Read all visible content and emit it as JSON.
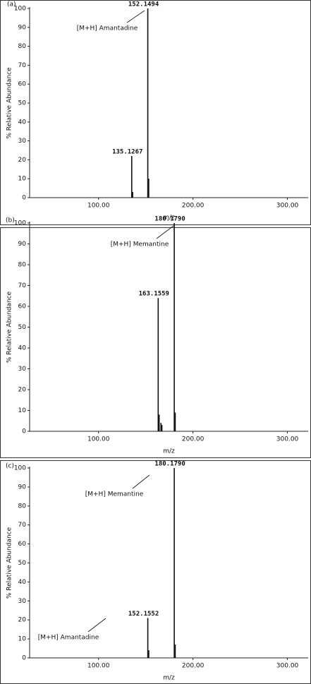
{
  "chart_data": [
    {
      "type": "spectrum",
      "panel_label": "(a)",
      "xlabel": "m/z",
      "ylabel": "% Relative Abundance",
      "x": [
        135.1267,
        136.1,
        152.1494,
        153.15
      ],
      "values": [
        22,
        3,
        100,
        10
      ],
      "x_labels": [
        "135.1267",
        null,
        "152.1494",
        null
      ],
      "annotations": [
        "[M+H] Amantadine"
      ],
      "color": "#111111",
      "xlim": [
        27,
        322
      ],
      "ylim": [
        0,
        100
      ],
      "xticks": [
        {
          "value": 100,
          "label": "100.00"
        },
        {
          "value": 200,
          "label": "200.00"
        },
        {
          "value": 300,
          "label": "300.00"
        }
      ],
      "yticks": [
        0,
        10,
        20,
        30,
        40,
        50,
        60,
        70,
        80,
        90,
        100
      ]
    },
    {
      "type": "spectrum",
      "panel_label": "(b)",
      "xlabel": "m/z",
      "ylabel": "% Relative Abundance",
      "x": [
        163.1559,
        164.16,
        166.1,
        167.1,
        180.179,
        181.18
      ],
      "values": [
        64,
        8,
        4,
        3,
        100,
        9
      ],
      "x_labels": [
        "163.1559",
        null,
        null,
        null,
        "180.1790",
        null
      ],
      "annotations": [
        "[M+H] Memantine"
      ],
      "color": "#111111",
      "xlim": [
        27,
        322
      ],
      "ylim": [
        0,
        100
      ],
      "xticks": [
        {
          "value": 100,
          "label": "100.00"
        },
        {
          "value": 200,
          "label": "200.00"
        },
        {
          "value": 300,
          "label": "300.00"
        }
      ],
      "yticks": [
        0,
        10,
        20,
        30,
        40,
        50,
        60,
        70,
        80,
        90,
        100
      ]
    },
    {
      "type": "spectrum",
      "panel_label": "(c)",
      "xlabel": "m/z",
      "ylabel": "% Relative Abundance",
      "x": [
        152.1552,
        153.16,
        180.179,
        181.18
      ],
      "values": [
        21,
        4,
        100,
        7
      ],
      "x_labels": [
        "152.1552",
        null,
        "180.1790",
        null
      ],
      "annotations": [
        "[M+H] Memantine",
        "[M+H] Amantadine"
      ],
      "color": "#111111",
      "xlim": [
        27,
        322
      ],
      "ylim": [
        0,
        100
      ],
      "xticks": [
        {
          "value": 100,
          "label": "100.00"
        },
        {
          "value": 200,
          "label": "200.00"
        },
        {
          "value": 300,
          "label": "300.00"
        }
      ],
      "yticks": [
        0,
        10,
        20,
        30,
        40,
        50,
        60,
        70,
        80,
        90,
        100
      ]
    }
  ]
}
